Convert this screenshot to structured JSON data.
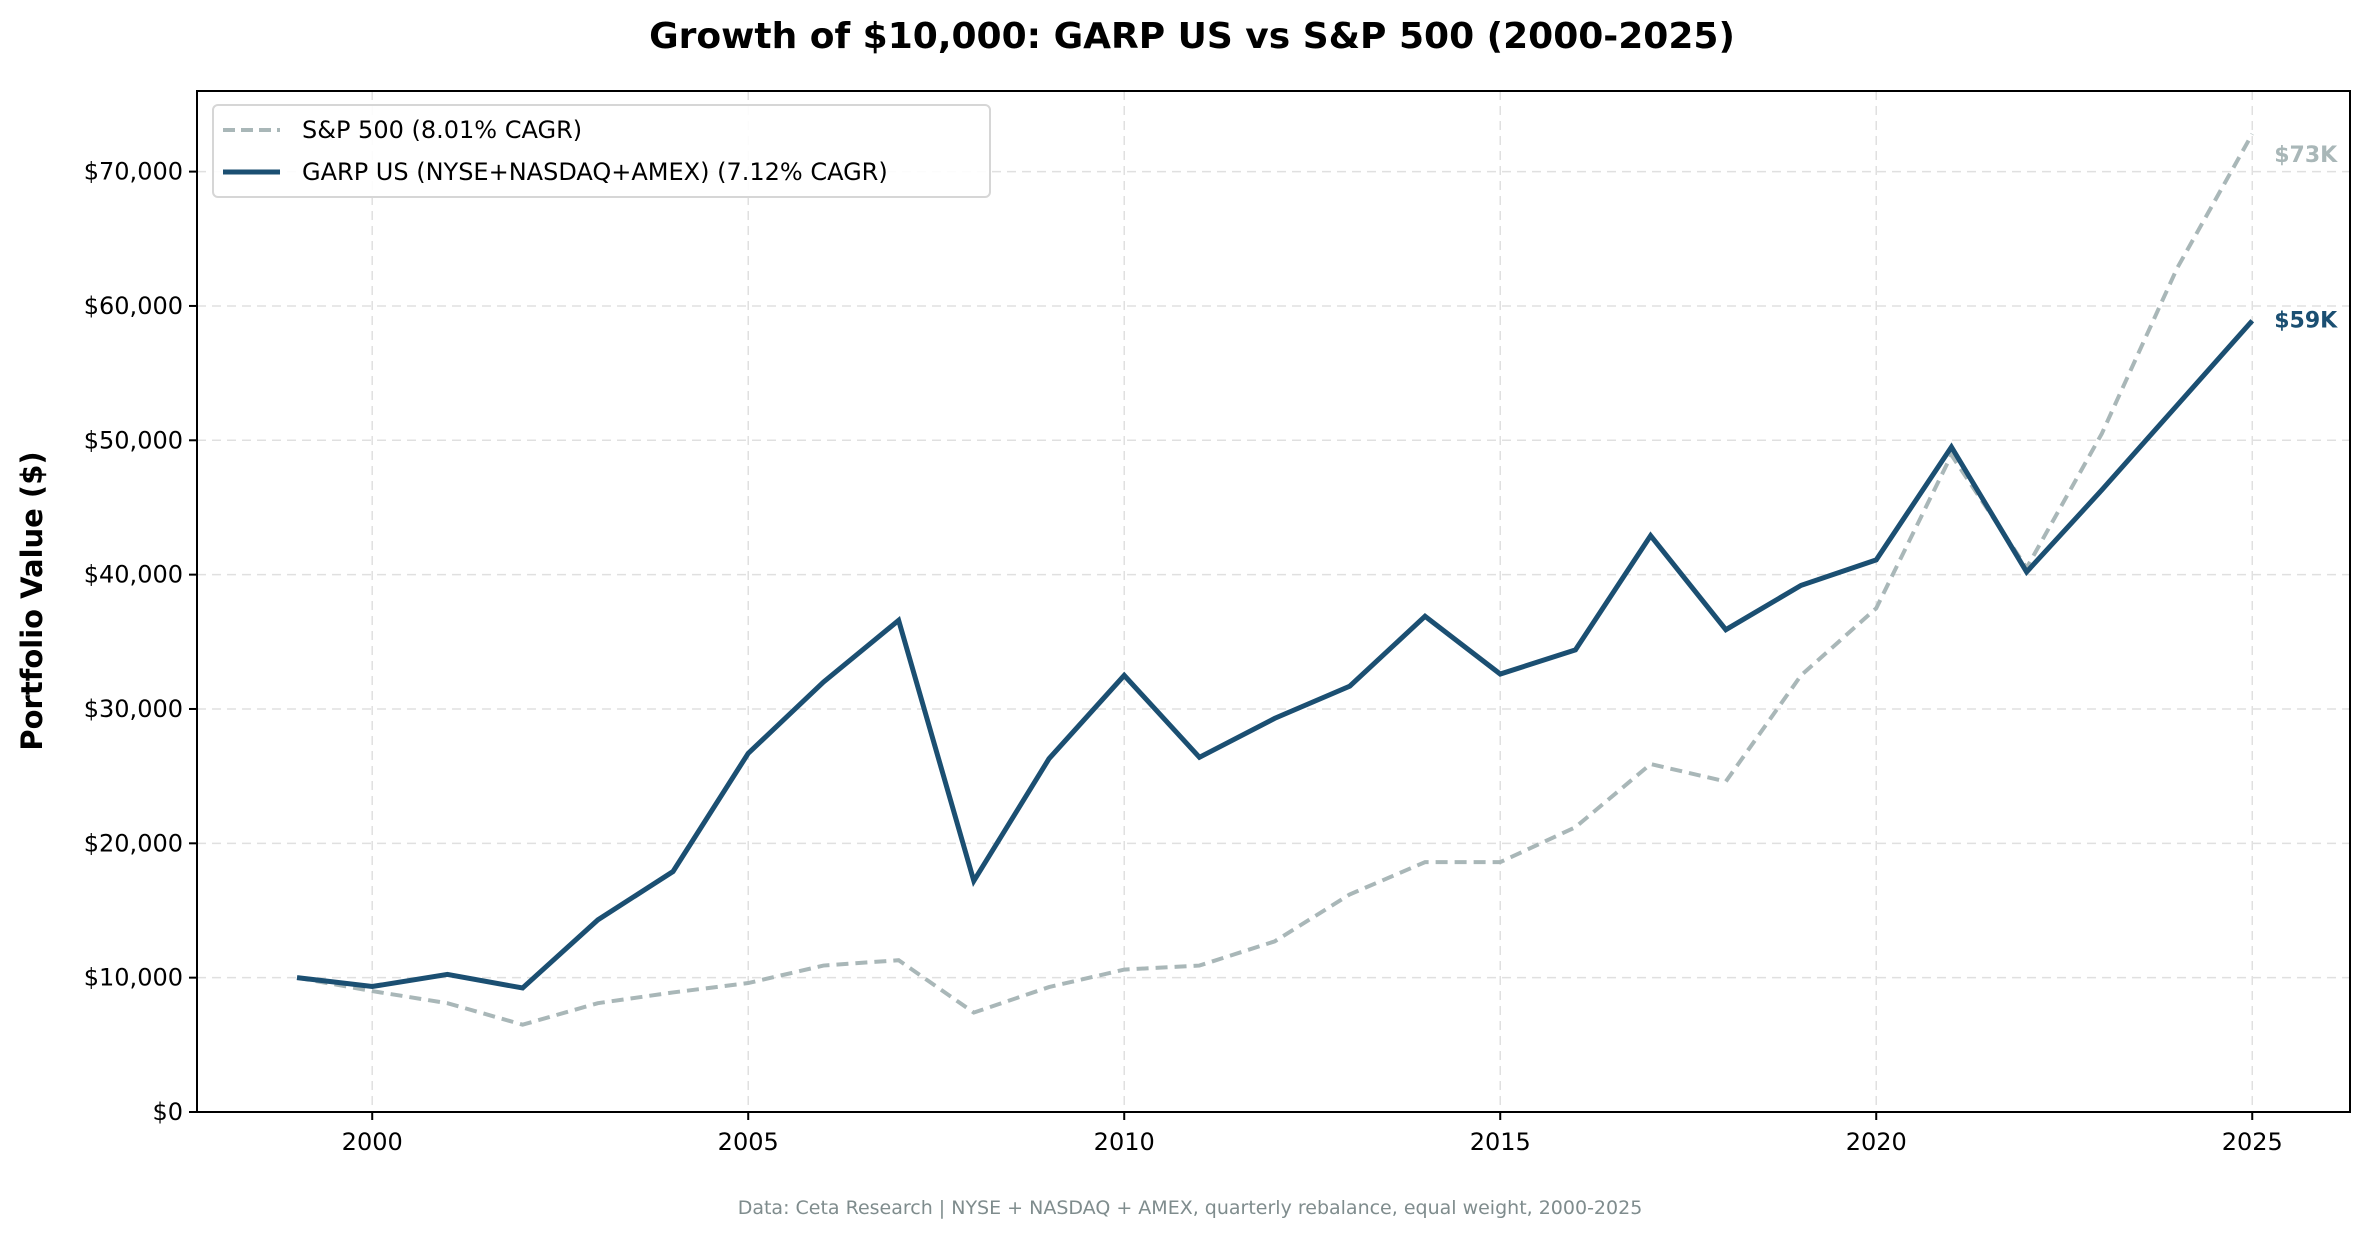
{
  "chart_data": {
    "type": "line",
    "title": "Growth of $10,000: GARP US vs S&P 500 (2000-2025)",
    "xlabel": "",
    "ylabel": "Portfolio Value ($)",
    "xlim": [
      1997.67,
      2026.3
    ],
    "ylim": [
      0,
      76000
    ],
    "xticks": [
      2000,
      2005,
      2010,
      2015,
      2020,
      2025
    ],
    "xtick_labels": [
      "2000",
      "2005",
      "2010",
      "2015",
      "2020",
      "2025"
    ],
    "yticks": [
      0,
      10000,
      20000,
      30000,
      40000,
      50000,
      60000,
      70000
    ],
    "ytick_labels": [
      "$0",
      "$10,000",
      "$20,000",
      "$30,000",
      "$40,000",
      "$50,000",
      "$60,000",
      "$70,000"
    ],
    "grid": true,
    "legend_position": "top-left",
    "x": [
      1999,
      2000,
      2001,
      2002,
      2003,
      2004,
      2005,
      2006,
      2007,
      2008,
      2009,
      2010,
      2011,
      2012,
      2013,
      2014,
      2015,
      2016,
      2017,
      2018,
      2019,
      2020,
      2021,
      2022,
      2023,
      2024,
      2025
    ],
    "series": [
      {
        "name": "S&P 500 (8.01% CAGR)",
        "color": "#a9b7b8",
        "style": "dashed",
        "values": [
          10000,
          9000,
          8100,
          6500,
          8100,
          8900,
          9600,
          10900,
          11300,
          7400,
          9300,
          10600,
          10900,
          12700,
          16200,
          18600,
          18600,
          21200,
          25900,
          24600,
          32500,
          37500,
          48900,
          40500,
          50500,
          62800,
          72800
        ],
        "end_label": "$73K"
      },
      {
        "name": "GARP US (NYSE+NASDAQ+AMEX) (7.12% CAGR)",
        "color": "#1b4f72",
        "style": "solid",
        "values": [
          10000,
          9340,
          10240,
          9230,
          14300,
          17900,
          26700,
          32000,
          36600,
          17200,
          26300,
          32500,
          26400,
          29300,
          31700,
          36900,
          32600,
          34400,
          42900,
          35900,
          39200,
          41100,
          49500,
          40200,
          46300,
          52600,
          58900
        ],
        "end_label": "$59K"
      }
    ],
    "footnote": "Data: Ceta Research | NYSE + NASDAQ + AMEX, quarterly rebalance, equal weight, 2000-2025"
  }
}
